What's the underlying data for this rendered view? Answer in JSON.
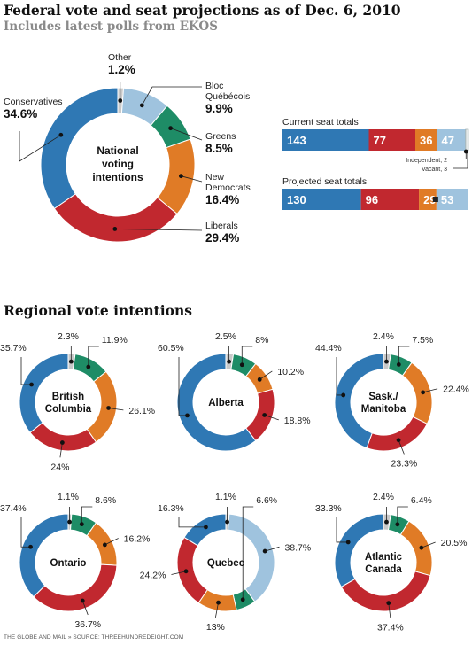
{
  "header": {
    "title": "Federal vote and seat projections as of Dec. 6, 2010",
    "subtitle": "Includes latest polls from EKOS"
  },
  "colors": {
    "conservative": "#2f78b4",
    "liberal": "#c1282f",
    "ndp": "#e07b26",
    "green": "#1e8c66",
    "bloc": "#9fc3de",
    "other": "#c9c9c9"
  },
  "chart_data": [
    {
      "type": "pie",
      "title": "National voting intentions",
      "center_label": [
        "National",
        "voting",
        "intentions"
      ],
      "slices": [
        {
          "party": "Other",
          "label": [
            "Other"
          ],
          "value": 1.2,
          "value_text": "1.2%"
        },
        {
          "party": "Bloc Québécois",
          "label": [
            "Bloc",
            "Québécois"
          ],
          "value": 9.9,
          "value_text": "9.9%"
        },
        {
          "party": "Greens",
          "label": [
            "Greens"
          ],
          "value": 8.5,
          "value_text": "8.5%"
        },
        {
          "party": "New Democrats",
          "label": [
            "New",
            "Democrats"
          ],
          "value": 16.4,
          "value_text": "16.4%"
        },
        {
          "party": "Liberals",
          "label": [
            "Liberals"
          ],
          "value": 29.4,
          "value_text": "29.4%"
        },
        {
          "party": "Conservatives",
          "label": [
            "Conservatives"
          ],
          "value": 34.6,
          "value_text": "34.6%"
        }
      ]
    },
    {
      "type": "bar",
      "title": "Current seat totals",
      "segments": [
        {
          "party": "Conservatives",
          "value": 143
        },
        {
          "party": "Liberals",
          "value": 77
        },
        {
          "party": "New Democrats",
          "value": 36
        },
        {
          "party": "Bloc Québécois",
          "value": 47
        },
        {
          "party": "Independent",
          "value": 2
        },
        {
          "party": "Vacant",
          "value": 3
        }
      ],
      "notes": [
        "Independent, 2",
        "Vacant, 3"
      ]
    },
    {
      "type": "bar",
      "title": "Projected seat totals",
      "segments": [
        {
          "party": "Conservatives",
          "value": 130
        },
        {
          "party": "Liberals",
          "value": 96
        },
        {
          "party": "New Democrats",
          "value": 29
        },
        {
          "party": "Greens",
          "value": 0
        },
        {
          "party": "Bloc Québécois",
          "value": 53
        }
      ]
    },
    {
      "type": "pie",
      "title": "Regional vote intentions",
      "regions": [
        {
          "name": [
            "British",
            "Columbia"
          ],
          "slices": [
            {
              "party": "Other",
              "value": 2.3,
              "text": "2.3%"
            },
            {
              "party": "Greens",
              "value": 11.9,
              "text": "11.9%"
            },
            {
              "party": "New Democrats",
              "value": 26.1,
              "text": "26.1%"
            },
            {
              "party": "Liberals",
              "value": 24,
              "text": "24%"
            },
            {
              "party": "Conservatives",
              "value": 35.7,
              "text": "35.7%"
            }
          ]
        },
        {
          "name": [
            "Alberta"
          ],
          "slices": [
            {
              "party": "Other",
              "value": 2.5,
              "text": "2.5%"
            },
            {
              "party": "Greens",
              "value": 8,
              "text": "8%"
            },
            {
              "party": "New Democrats",
              "value": 10.2,
              "text": "10.2%"
            },
            {
              "party": "Liberals",
              "value": 18.8,
              "text": "18.8%"
            },
            {
              "party": "Conservatives",
              "value": 60.5,
              "text": "60.5%"
            }
          ]
        },
        {
          "name": [
            "Sask./",
            "Manitoba"
          ],
          "slices": [
            {
              "party": "Other",
              "value": 2.4,
              "text": "2.4%"
            },
            {
              "party": "Greens",
              "value": 7.5,
              "text": "7.5%"
            },
            {
              "party": "New Democrats",
              "value": 22.4,
              "text": "22.4%"
            },
            {
              "party": "Liberals",
              "value": 23.3,
              "text": "23.3%"
            },
            {
              "party": "Conservatives",
              "value": 44.4,
              "text": "44.4%"
            }
          ]
        },
        {
          "name": [
            "Ontario"
          ],
          "slices": [
            {
              "party": "Other",
              "value": 1.1,
              "text": "1.1%"
            },
            {
              "party": "Greens",
              "value": 8.6,
              "text": "8.6%"
            },
            {
              "party": "New Democrats",
              "value": 16.2,
              "text": "16.2%"
            },
            {
              "party": "Liberals",
              "value": 36.7,
              "text": "36.7%"
            },
            {
              "party": "Conservatives",
              "value": 37.4,
              "text": "37.4%"
            }
          ]
        },
        {
          "name": [
            "Quebec"
          ],
          "slices": [
            {
              "party": "Other",
              "value": 1.1,
              "text": "1.1%"
            },
            {
              "party": "Bloc Québécois",
              "value": 38.7,
              "text": "38.7%"
            },
            {
              "party": "Greens",
              "value": 6.6,
              "text": "6.6%"
            },
            {
              "party": "New Democrats",
              "value": 13,
              "text": "13%"
            },
            {
              "party": "Liberals",
              "value": 24.2,
              "text": "24.2%"
            },
            {
              "party": "Conservatives",
              "value": 16.3,
              "text": "16.3%"
            }
          ]
        },
        {
          "name": [
            "Atlantic",
            "Canada"
          ],
          "slices": [
            {
              "party": "Other",
              "value": 2.4,
              "text": "2.4%"
            },
            {
              "party": "Greens",
              "value": 6.4,
              "text": "6.4%"
            },
            {
              "party": "New Democrats",
              "value": 20.5,
              "text": "20.5%"
            },
            {
              "party": "Liberals",
              "value": 37.4,
              "text": "37.4%"
            },
            {
              "party": "Conservatives",
              "value": 33.3,
              "text": "33.3%"
            }
          ]
        }
      ]
    }
  ],
  "footer": "THE GLOBE AND MAIL  »  SOURCE: THREEHUNDREDEIGHT.COM"
}
